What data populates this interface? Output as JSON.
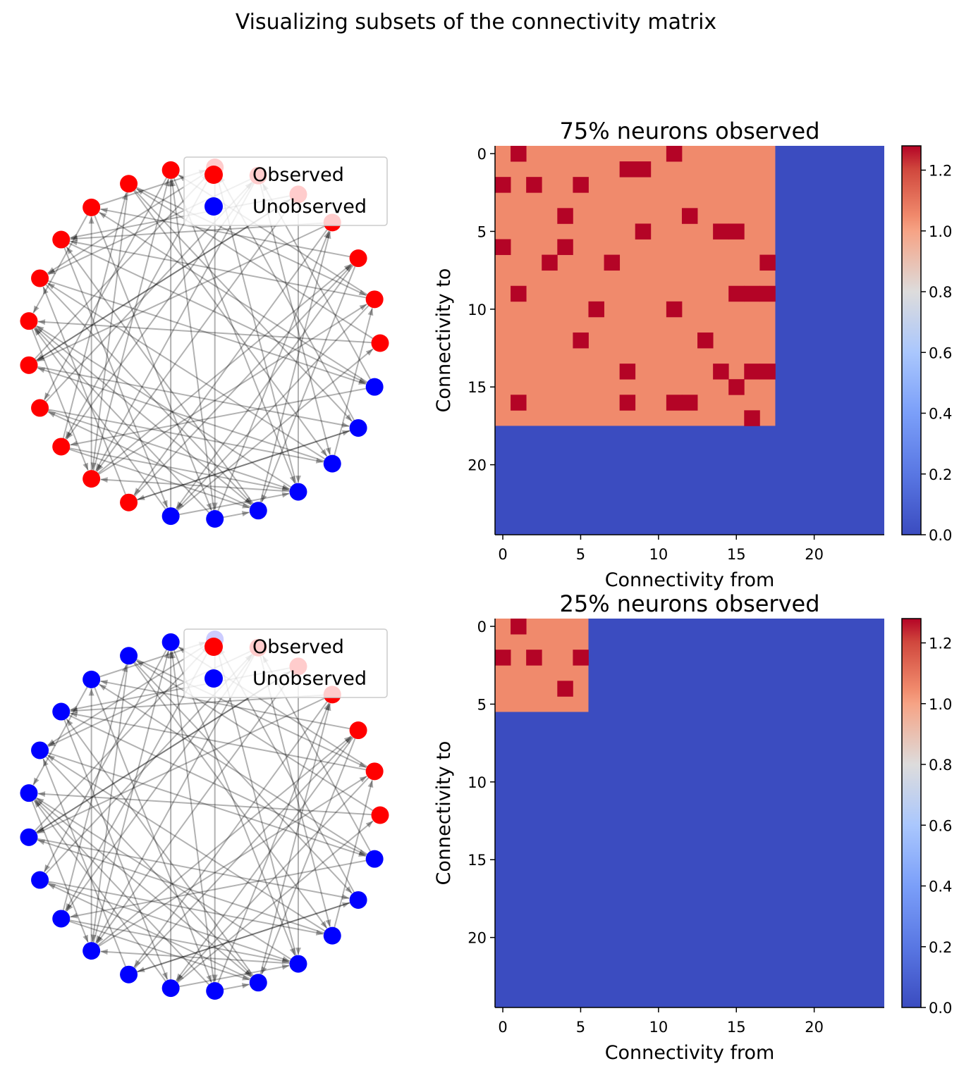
{
  "figure": {
    "suptitle": "Visualizing subsets of the connectivity matrix"
  },
  "chart_data": [
    {
      "type": "network",
      "panel": "top-left",
      "legend": {
        "entries": [
          "Observed",
          "Unobserved"
        ],
        "placement": "upper-right"
      },
      "node_colors": {
        "Observed": "#ff0000",
        "Unobserved": "#0000ff"
      },
      "n_nodes": 25,
      "observed_nodes": [
        0,
        1,
        2,
        3,
        4,
        5,
        6,
        7,
        8,
        9,
        10,
        11,
        12,
        13,
        14,
        15,
        16,
        17
      ],
      "edges": [
        [
          0,
          8
        ],
        [
          1,
          7
        ],
        [
          2,
          9
        ],
        [
          3,
          10
        ],
        [
          4,
          13
        ],
        [
          5,
          15
        ],
        [
          6,
          19
        ],
        [
          7,
          21
        ],
        [
          8,
          22
        ],
        [
          9,
          12
        ],
        [
          10,
          18
        ],
        [
          11,
          20
        ],
        [
          12,
          16
        ],
        [
          13,
          23
        ],
        [
          14,
          5
        ],
        [
          15,
          21
        ],
        [
          16,
          2
        ],
        [
          17,
          11
        ],
        [
          18,
          0
        ],
        [
          19,
          3
        ],
        [
          20,
          14
        ],
        [
          21,
          6
        ],
        [
          22,
          1
        ],
        [
          23,
          17
        ],
        [
          24,
          9
        ],
        [
          0,
          12
        ],
        [
          2,
          18
        ],
        [
          4,
          21
        ],
        [
          6,
          11
        ],
        [
          8,
          16
        ],
        [
          10,
          24
        ],
        [
          12,
          20
        ],
        [
          14,
          22
        ],
        [
          16,
          1
        ],
        [
          18,
          7
        ],
        [
          20,
          3
        ],
        [
          22,
          13
        ],
        [
          24,
          15
        ],
        [
          1,
          10
        ],
        [
          3,
          17
        ],
        [
          5,
          22
        ],
        [
          7,
          14
        ],
        [
          9,
          19
        ],
        [
          11,
          24
        ],
        [
          13,
          4
        ],
        [
          15,
          8
        ],
        [
          17,
          2
        ],
        [
          19,
          12
        ],
        [
          21,
          16
        ],
        [
          23,
          6
        ],
        [
          4,
          16
        ],
        [
          8,
          23
        ],
        [
          19,
          7
        ],
        [
          3,
          13
        ],
        [
          18,
          21
        ],
        [
          19,
          20
        ],
        [
          16,
          9
        ],
        [
          20,
          10
        ],
        [
          18,
          12
        ],
        [
          13,
          6
        ],
        [
          14,
          21
        ],
        [
          2,
          20
        ],
        [
          15,
          20
        ],
        [
          16,
          7
        ],
        [
          17,
          23
        ],
        [
          4,
          10
        ],
        [
          5,
          11
        ],
        [
          5,
          16
        ],
        [
          6,
          15
        ],
        [
          8,
          1
        ],
        [
          9,
          6
        ],
        [
          21,
          12
        ],
        [
          22,
          11
        ],
        [
          24,
          5
        ],
        [
          1,
          18
        ]
      ]
    },
    {
      "type": "heatmap",
      "panel": "top-right",
      "title": "75% neurons observed",
      "xlabel": "Connectivity from",
      "ylabel": "Connectivity to",
      "x_ticks": [
        0,
        5,
        10,
        15,
        20
      ],
      "y_ticks": [
        0,
        5,
        10,
        15,
        20
      ],
      "shape": [
        25,
        25
      ],
      "observed_block": 18,
      "colormap": "coolwarm",
      "colors": {
        "low": "#3b4cc0",
        "mid": "#f08a6c",
        "high": "#b40426"
      },
      "values": {
        "unobserved": 0.0,
        "observed_background": 1.0,
        "highlight": 1.28
      },
      "highlight_cells_row_col": [
        [
          0,
          1
        ],
        [
          0,
          11
        ],
        [
          1,
          8
        ],
        [
          1,
          9
        ],
        [
          2,
          0
        ],
        [
          2,
          2
        ],
        [
          2,
          5
        ],
        [
          4,
          4
        ],
        [
          4,
          12
        ],
        [
          5,
          9
        ],
        [
          5,
          14
        ],
        [
          5,
          15
        ],
        [
          6,
          0
        ],
        [
          6,
          4
        ],
        [
          7,
          3
        ],
        [
          7,
          7
        ],
        [
          7,
          17
        ],
        [
          9,
          1
        ],
        [
          9,
          15
        ],
        [
          9,
          16
        ],
        [
          9,
          17
        ],
        [
          10,
          6
        ],
        [
          10,
          11
        ],
        [
          12,
          5
        ],
        [
          12,
          13
        ],
        [
          14,
          8
        ],
        [
          14,
          14
        ],
        [
          14,
          16
        ],
        [
          14,
          17
        ],
        [
          15,
          15
        ],
        [
          16,
          1
        ],
        [
          16,
          8
        ],
        [
          16,
          11
        ],
        [
          16,
          12
        ],
        [
          17,
          16
        ]
      ],
      "colorbar": {
        "ticks": [
          "0.0",
          "0.2",
          "0.4",
          "0.6",
          "0.8",
          "1.0",
          "1.2"
        ],
        "range": [
          0,
          1.28
        ]
      }
    },
    {
      "type": "network",
      "panel": "bottom-left",
      "legend": {
        "entries": [
          "Observed",
          "Unobserved"
        ],
        "placement": "upper-right"
      },
      "node_colors": {
        "Observed": "#ff0000",
        "Unobserved": "#0000ff"
      },
      "n_nodes": 25,
      "observed_nodes": [
        0,
        1,
        2,
        3,
        4,
        5
      ],
      "edges": "same as top-left"
    },
    {
      "type": "heatmap",
      "panel": "bottom-right",
      "title": "25% neurons observed",
      "xlabel": "Connectivity from",
      "ylabel": "Connectivity to",
      "x_ticks": [
        0,
        5,
        10,
        15,
        20
      ],
      "y_ticks": [
        0,
        5,
        10,
        15,
        20
      ],
      "shape": [
        25,
        25
      ],
      "observed_block": 6,
      "colormap": "coolwarm",
      "colors": {
        "low": "#3b4cc0",
        "mid": "#f08a6c",
        "high": "#b40426"
      },
      "values": {
        "unobserved": 0.0,
        "observed_background": 1.0,
        "highlight": 1.28
      },
      "highlight_cells_row_col": [
        [
          0,
          1
        ],
        [
          2,
          0
        ],
        [
          2,
          2
        ],
        [
          2,
          5
        ],
        [
          4,
          4
        ]
      ],
      "colorbar": {
        "ticks": [
          "0.0",
          "0.2",
          "0.4",
          "0.6",
          "0.8",
          "1.0",
          "1.2"
        ],
        "range": [
          0,
          1.28
        ]
      }
    }
  ]
}
